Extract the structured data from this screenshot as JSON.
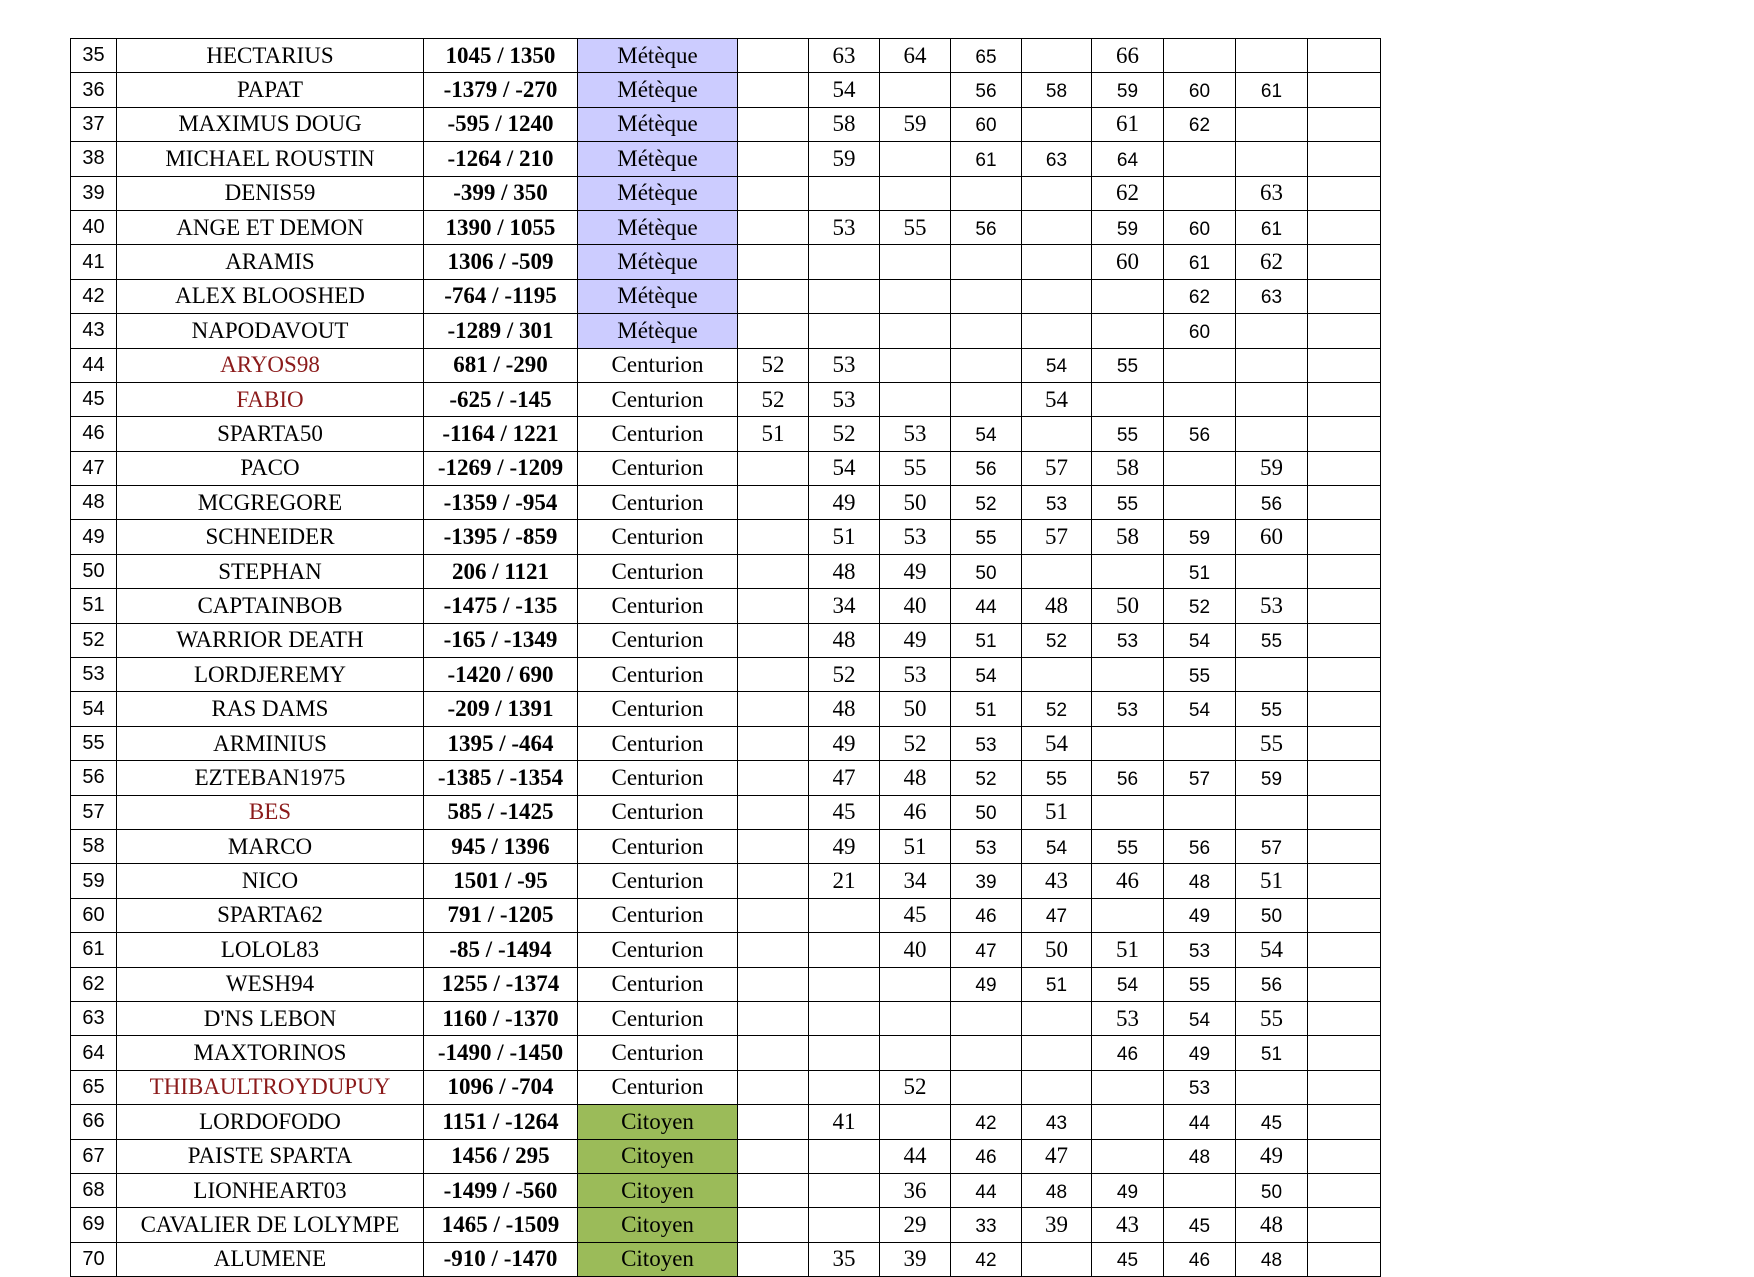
{
  "colors": {
    "highlight_name": "#8b1a1a",
    "meteque": "#ccccff",
    "citoyen": "#9bbb59"
  },
  "rows": [
    {
      "rank": "35",
      "name": "HECTARIUS",
      "coords": "1045 / 1350",
      "status": "Métèque",
      "values": [
        "",
        "63",
        "64",
        "65",
        "",
        "66",
        "",
        "",
        ""
      ]
    },
    {
      "rank": "36",
      "name": "PAPAT",
      "coords": "-1379 / -270",
      "status": "Métèque",
      "values": [
        "",
        "54",
        "",
        "56",
        "58",
        "59",
        "60",
        "61",
        ""
      ]
    },
    {
      "rank": "37",
      "name": "MAXIMUS DOUG",
      "coords": "-595 / 1240",
      "status": "Métèque",
      "values": [
        "",
        "58",
        "59",
        "60",
        "",
        "61",
        "62",
        "",
        ""
      ]
    },
    {
      "rank": "38",
      "name": "MICHAEL ROUSTIN",
      "coords": "-1264 / 210",
      "status": "Métèque",
      "values": [
        "",
        "59",
        "",
        "61",
        "63",
        "64",
        "",
        "",
        ""
      ]
    },
    {
      "rank": "39",
      "name": "DENIS59",
      "coords": "-399 / 350",
      "status": "Métèque",
      "values": [
        "",
        "",
        "",
        "",
        "",
        "62",
        "",
        "63",
        ""
      ]
    },
    {
      "rank": "40",
      "name": "ANGE ET DEMON",
      "coords": "1390 / 1055",
      "status": "Métèque",
      "values": [
        "",
        "53",
        "55",
        "56",
        "",
        "59",
        "60",
        "61",
        ""
      ]
    },
    {
      "rank": "41",
      "name": "ARAMIS",
      "coords": "1306 / -509",
      "status": "Métèque",
      "values": [
        "",
        "",
        "",
        "",
        "",
        "60",
        "61",
        "62",
        ""
      ]
    },
    {
      "rank": "42",
      "name": "ALEX BLOOSHED",
      "coords": "-764 / -1195",
      "status": "Métèque",
      "values": [
        "",
        "",
        "",
        "",
        "",
        "",
        "62",
        "63",
        ""
      ]
    },
    {
      "rank": "43",
      "name": "NAPODAVOUT",
      "coords": "-1289 / 301",
      "status": "Métèque",
      "values": [
        "",
        "",
        "",
        "",
        "",
        "",
        "60",
        "",
        ""
      ]
    },
    {
      "rank": "44",
      "name": "ARYOS98",
      "coords": "681 / -290",
      "status": "Centurion",
      "red": true,
      "values": [
        "52",
        "53",
        "",
        "",
        "54",
        "55",
        "",
        "",
        ""
      ]
    },
    {
      "rank": "45",
      "name": "FABIO",
      "coords": "-625 / -145",
      "status": "Centurion",
      "red": true,
      "values": [
        "52",
        "53",
        "",
        "",
        "54",
        "",
        "",
        "",
        ""
      ]
    },
    {
      "rank": "46",
      "name": "SPARTA50",
      "coords": "-1164 / 1221",
      "status": "Centurion",
      "values": [
        "51",
        "52",
        "53",
        "54",
        "",
        "55",
        "56",
        "",
        ""
      ]
    },
    {
      "rank": "47",
      "name": "PACO",
      "coords": "-1269 / -1209",
      "status": "Centurion",
      "values": [
        "",
        "54",
        "55",
        "56",
        "57",
        "58",
        "",
        "59",
        ""
      ]
    },
    {
      "rank": "48",
      "name": "MCGREGORE",
      "coords": "-1359 / -954",
      "status": "Centurion",
      "values": [
        "",
        "49",
        "50",
        "52",
        "53",
        "55",
        "",
        "56",
        ""
      ]
    },
    {
      "rank": "49",
      "name": "SCHNEIDER",
      "coords": "-1395 / -859",
      "status": "Centurion",
      "values": [
        "",
        "51",
        "53",
        "55",
        "57",
        "58",
        "59",
        "60",
        ""
      ]
    },
    {
      "rank": "50",
      "name": "STEPHAN",
      "coords": "206 / 1121",
      "status": "Centurion",
      "values": [
        "",
        "48",
        "49",
        "50",
        "",
        "",
        "51",
        "",
        ""
      ]
    },
    {
      "rank": "51",
      "name": "CAPTAINBOB",
      "coords": "-1475 / -135",
      "status": "Centurion",
      "values": [
        "",
        "34",
        "40",
        "44",
        "48",
        "50",
        "52",
        "53",
        ""
      ]
    },
    {
      "rank": "52",
      "name": "WARRIOR DEATH",
      "coords": "-165 / -1349",
      "status": "Centurion",
      "values": [
        "",
        "48",
        "49",
        "51",
        "52",
        "53",
        "54",
        "55",
        ""
      ]
    },
    {
      "rank": "53",
      "name": "LORDJEREMY",
      "coords": "-1420 / 690",
      "status": "Centurion",
      "values": [
        "",
        "52",
        "53",
        "54",
        "",
        "",
        "55",
        "",
        ""
      ]
    },
    {
      "rank": "54",
      "name": "RAS DAMS",
      "coords": "-209 / 1391",
      "status": "Centurion",
      "values": [
        "",
        "48",
        "50",
        "51",
        "52",
        "53",
        "54",
        "55",
        ""
      ]
    },
    {
      "rank": "55",
      "name": "ARMINIUS",
      "coords": "1395 / -464",
      "status": "Centurion",
      "values": [
        "",
        "49",
        "52",
        "53",
        "54",
        "",
        "",
        "55",
        ""
      ]
    },
    {
      "rank": "56",
      "name": "EZTEBAN1975",
      "coords": "-1385 / -1354",
      "status": "Centurion",
      "values": [
        "",
        "47",
        "48",
        "52",
        "55",
        "56",
        "57",
        "59",
        ""
      ]
    },
    {
      "rank": "57",
      "name": "BES",
      "coords": "585 / -1425",
      "status": "Centurion",
      "red": true,
      "values": [
        "",
        "45",
        "46",
        "50",
        "51",
        "",
        "",
        "",
        ""
      ]
    },
    {
      "rank": "58",
      "name": "MARCO",
      "coords": "945 / 1396",
      "status": "Centurion",
      "values": [
        "",
        "49",
        "51",
        "53",
        "54",
        "55",
        "56",
        "57",
        ""
      ]
    },
    {
      "rank": "59",
      "name": "NICO",
      "coords": "1501 / -95",
      "status": "Centurion",
      "values": [
        "",
        "21",
        "34",
        "39",
        "43",
        "46",
        "48",
        "51",
        ""
      ]
    },
    {
      "rank": "60",
      "name": "SPARTA62",
      "coords": "791 / -1205",
      "status": "Centurion",
      "values": [
        "",
        "",
        "45",
        "46",
        "47",
        "",
        "49",
        "50",
        ""
      ]
    },
    {
      "rank": "61",
      "name": "LOLOL83",
      "coords": "-85 / -1494",
      "status": "Centurion",
      "values": [
        "",
        "",
        "40",
        "47",
        "50",
        "51",
        "53",
        "54",
        ""
      ]
    },
    {
      "rank": "62",
      "name": "WESH94",
      "coords": "1255 / -1374",
      "status": "Centurion",
      "values": [
        "",
        "",
        "",
        "49",
        "51",
        "54",
        "55",
        "56",
        ""
      ]
    },
    {
      "rank": "63",
      "name": "D'NS LEBON",
      "coords": "1160 / -1370",
      "status": "Centurion",
      "values": [
        "",
        "",
        "",
        "",
        "",
        "53",
        "54",
        "55",
        ""
      ]
    },
    {
      "rank": "64",
      "name": "MAXTORINOS",
      "coords": "-1490 / -1450",
      "status": "Centurion",
      "values": [
        "",
        "",
        "",
        "",
        "",
        "46",
        "49",
        "51",
        ""
      ]
    },
    {
      "rank": "65",
      "name": "THIBAULTROYDUPUY",
      "coords": "1096 / -704",
      "status": "Centurion",
      "red": true,
      "values": [
        "",
        "",
        "52",
        "",
        "",
        "",
        "53",
        "",
        ""
      ]
    },
    {
      "rank": "66",
      "name": "LORDOFODO",
      "coords": "1151 / -1264",
      "status": "Citoyen",
      "values": [
        "",
        "41",
        "",
        "42",
        "43",
        "",
        "44",
        "45",
        ""
      ]
    },
    {
      "rank": "67",
      "name": "PAISTE SPARTA",
      "coords": "1456 / 295",
      "status": "Citoyen",
      "values": [
        "",
        "",
        "44",
        "46",
        "47",
        "",
        "48",
        "49",
        ""
      ]
    },
    {
      "rank": "68",
      "name": "LIONHEART03",
      "coords": "-1499 / -560",
      "status": "Citoyen",
      "values": [
        "",
        "",
        "36",
        "44",
        "48",
        "49",
        "",
        "50",
        ""
      ]
    },
    {
      "rank": "69",
      "name": "CAVALIER DE LOLYMPE",
      "coords": "1465 / -1509",
      "status": "Citoyen",
      "values": [
        "",
        "",
        "29",
        "33",
        "39",
        "43",
        "45",
        "48",
        ""
      ]
    },
    {
      "rank": "70",
      "name": "ALUMENE",
      "coords": "-910 / -1470",
      "status": "Citoyen",
      "values": [
        "",
        "35",
        "39",
        "42",
        "",
        "45",
        "46",
        "48",
        ""
      ]
    }
  ]
}
